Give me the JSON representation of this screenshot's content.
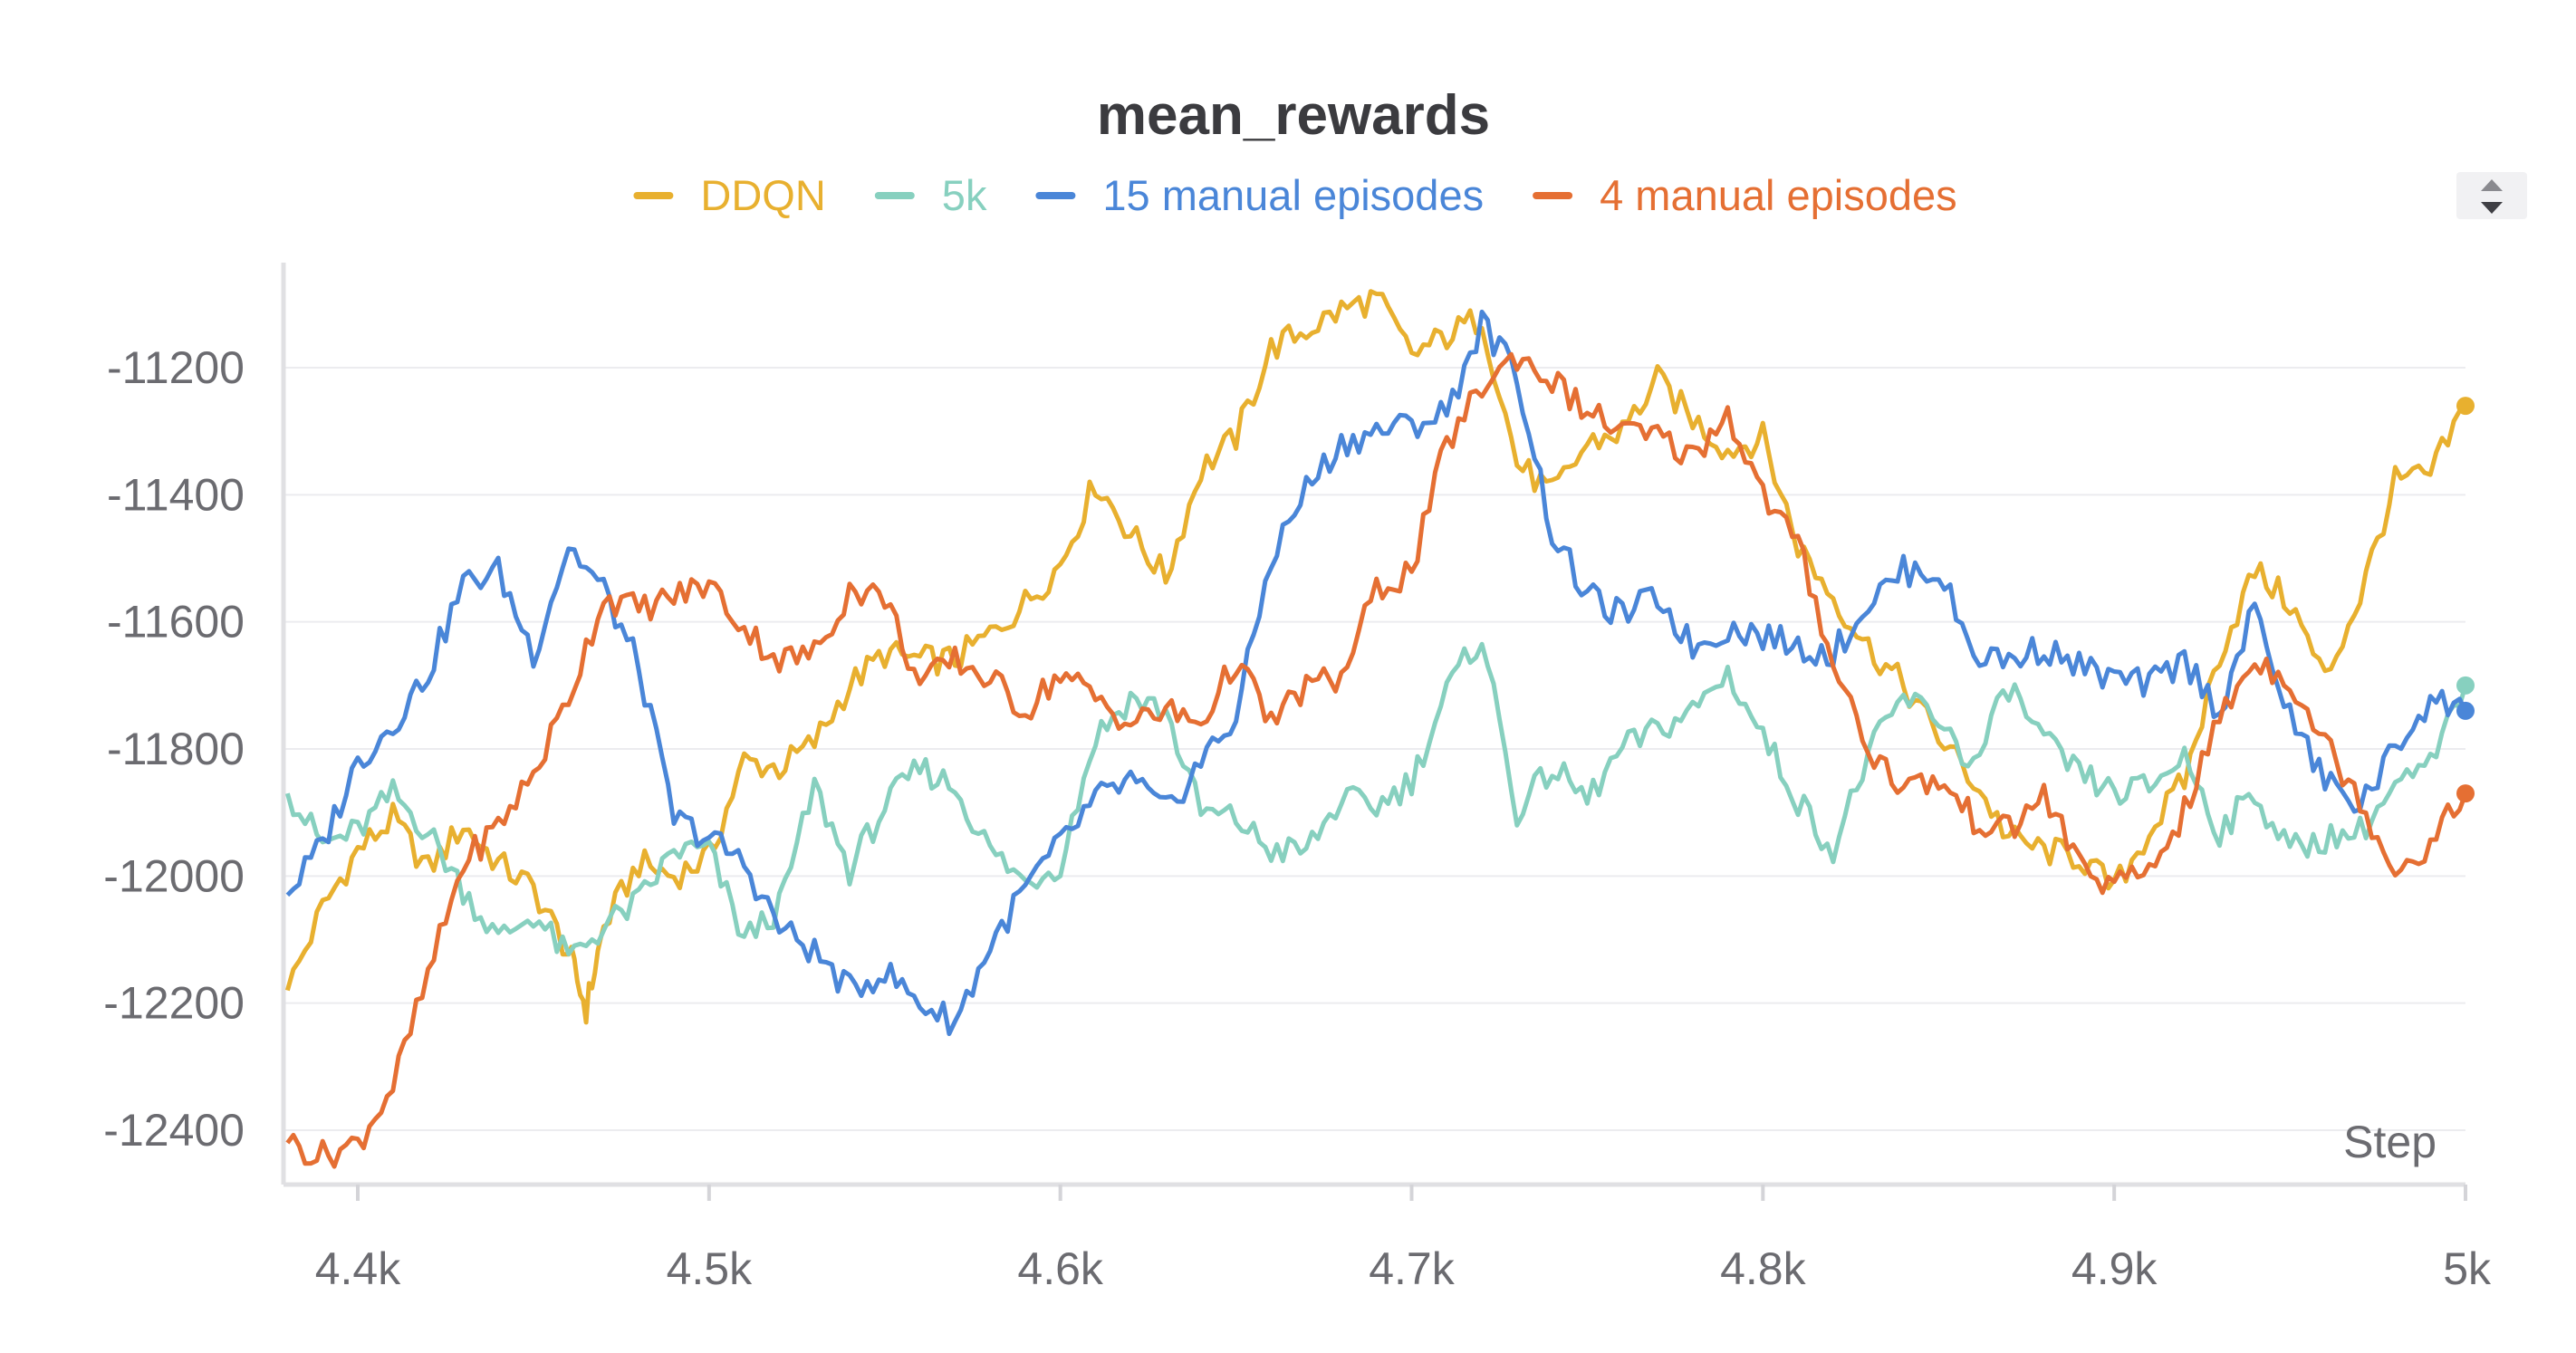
{
  "chart_data": {
    "type": "line",
    "title": "mean_rewards",
    "xlabel": "Step",
    "ylabel": "",
    "xlim": [
      4380,
      5000
    ],
    "ylim": [
      -12480,
      -11040
    ],
    "x_ticks": [
      4400,
      4500,
      4600,
      4700,
      4800,
      4900,
      5000
    ],
    "x_tick_labels": [
      "4.4k",
      "4.5k",
      "4.6k",
      "4.7k",
      "4.8k",
      "4.9k",
      "5k"
    ],
    "y_ticks": [
      -11200,
      -11400,
      -11600,
      -11800,
      -12000,
      -12200,
      -12400
    ],
    "y_tick_labels": [
      "-11200",
      "-11400",
      "-11600",
      "-11800",
      "-12000",
      "-12200",
      "-12400"
    ],
    "grid": true,
    "legend_position": "top-center",
    "series": [
      {
        "name": "DDQN",
        "color": "#e8b02f",
        "x": [
          4380,
          4390,
          4400,
          4410,
          4420,
          4430,
          4440,
          4450,
          4460,
          4465,
          4470,
          4480,
          4490,
          4500,
          4510,
          4520,
          4530,
          4540,
          4550,
          4560,
          4570,
          4580,
          4590,
          4600,
          4610,
          4620,
          4630,
          4640,
          4650,
          4660,
          4670,
          4680,
          4690,
          4700,
          4710,
          4720,
          4730,
          4740,
          4750,
          4760,
          4770,
          4780,
          4790,
          4800,
          4810,
          4820,
          4830,
          4840,
          4850,
          4860,
          4870,
          4880,
          4890,
          4900,
          4910,
          4920,
          4930,
          4940,
          4950,
          4960,
          4970,
          4980,
          4990,
          5000
        ],
        "values": [
          -12180,
          -12050,
          -11960,
          -11910,
          -11990,
          -11920,
          -11980,
          -12020,
          -12120,
          -12210,
          -12080,
          -11980,
          -12000,
          -11970,
          -11820,
          -11830,
          -11790,
          -11700,
          -11650,
          -11660,
          -11660,
          -11620,
          -11570,
          -11510,
          -11380,
          -11460,
          -11530,
          -11360,
          -11310,
          -11170,
          -11140,
          -11110,
          -11090,
          -11180,
          -11150,
          -11120,
          -11350,
          -11400,
          -11320,
          -11300,
          -11220,
          -11280,
          -11330,
          -11310,
          -11480,
          -11560,
          -11640,
          -11700,
          -11780,
          -11850,
          -11940,
          -11960,
          -11970,
          -12020,
          -11930,
          -11850,
          -11650,
          -11520,
          -11570,
          -11690,
          -11560,
          -11380,
          -11370,
          -11260
        ]
      },
      {
        "name": "5k",
        "color": "#87d0bf",
        "x": [
          4380,
          4390,
          4400,
          4410,
          4420,
          4430,
          4440,
          4450,
          4460,
          4470,
          4480,
          4490,
          4500,
          4510,
          4520,
          4530,
          4540,
          4550,
          4560,
          4570,
          4580,
          4590,
          4600,
          4610,
          4620,
          4630,
          4640,
          4650,
          4660,
          4670,
          4680,
          4690,
          4700,
          4710,
          4720,
          4730,
          4740,
          4750,
          4760,
          4770,
          4780,
          4790,
          4800,
          4810,
          4820,
          4830,
          4840,
          4850,
          4860,
          4870,
          4880,
          4890,
          4900,
          4910,
          4920,
          4930,
          4940,
          4950,
          4960,
          4970,
          4980,
          4990,
          5000
        ],
        "values": [
          -11870,
          -11950,
          -11930,
          -11870,
          -11930,
          -12020,
          -12100,
          -12060,
          -12130,
          -12080,
          -12040,
          -11960,
          -11960,
          -12100,
          -12050,
          -11860,
          -11990,
          -11890,
          -11830,
          -11860,
          -11960,
          -12010,
          -11980,
          -11780,
          -11720,
          -11740,
          -11900,
          -11910,
          -11960,
          -11960,
          -11880,
          -11890,
          -11850,
          -11710,
          -11620,
          -11900,
          -11830,
          -11880,
          -11800,
          -11770,
          -11740,
          -11680,
          -11780,
          -11880,
          -11960,
          -11810,
          -11720,
          -11750,
          -11830,
          -11700,
          -11790,
          -11840,
          -11870,
          -11860,
          -11810,
          -11930,
          -11870,
          -11960,
          -11940,
          -11930,
          -11860,
          -11830,
          -11700
        ]
      },
      {
        "name": "15 manual episodes",
        "color": "#4a86d8",
        "x": [
          4380,
          4390,
          4400,
          4410,
          4420,
          4430,
          4440,
          4450,
          4460,
          4470,
          4480,
          4490,
          4500,
          4510,
          4520,
          4530,
          4540,
          4550,
          4560,
          4570,
          4580,
          4590,
          4600,
          4610,
          4620,
          4630,
          4640,
          4650,
          4660,
          4670,
          4680,
          4690,
          4700,
          4710,
          4720,
          4730,
          4740,
          4750,
          4760,
          4770,
          4780,
          4790,
          4800,
          4810,
          4820,
          4830,
          4840,
          4850,
          4860,
          4870,
          4880,
          4890,
          4900,
          4910,
          4920,
          4930,
          4940,
          4950,
          4960,
          4970,
          4980,
          4990,
          5000
        ],
        "values": [
          -12030,
          -11950,
          -11820,
          -11760,
          -11680,
          -11540,
          -11520,
          -11650,
          -11480,
          -11550,
          -11670,
          -11910,
          -11940,
          -11980,
          -12080,
          -12120,
          -12180,
          -12150,
          -12200,
          -12230,
          -12110,
          -12020,
          -11950,
          -11880,
          -11850,
          -11900,
          -11820,
          -11750,
          -11500,
          -11390,
          -11320,
          -11300,
          -11290,
          -11270,
          -11130,
          -11210,
          -11460,
          -11560,
          -11590,
          -11560,
          -11640,
          -11610,
          -11620,
          -11640,
          -11650,
          -11570,
          -11520,
          -11520,
          -11650,
          -11660,
          -11640,
          -11670,
          -11690,
          -11700,
          -11660,
          -11740,
          -11580,
          -11750,
          -11850,
          -11890,
          -11800,
          -11720,
          -11740
        ]
      },
      {
        "name": "4 manual episodes",
        "color": "#e56f33",
        "x": [
          4380,
          4390,
          4400,
          4410,
          4420,
          4430,
          4440,
          4450,
          4460,
          4470,
          4480,
          4490,
          4500,
          4510,
          4520,
          4530,
          4540,
          4550,
          4560,
          4570,
          4580,
          4590,
          4600,
          4610,
          4620,
          4630,
          4640,
          4650,
          4660,
          4670,
          4680,
          4690,
          4700,
          4710,
          4720,
          4730,
          4740,
          4750,
          4760,
          4770,
          4780,
          4790,
          4800,
          4810,
          4820,
          4830,
          4840,
          4850,
          4860,
          4870,
          4880,
          4890,
          4900,
          4910,
          4920,
          4930,
          4940,
          4950,
          4960,
          4970,
          4980,
          4990,
          5000
        ],
        "values": [
          -12420,
          -12440,
          -12420,
          -12330,
          -12160,
          -11980,
          -11920,
          -11840,
          -11720,
          -11560,
          -11580,
          -11560,
          -11540,
          -11610,
          -11660,
          -11650,
          -11550,
          -11560,
          -11700,
          -11660,
          -11690,
          -11740,
          -11680,
          -11720,
          -11760,
          -11740,
          -11760,
          -11660,
          -11760,
          -11700,
          -11690,
          -11550,
          -11520,
          -11320,
          -11230,
          -11180,
          -11220,
          -11270,
          -11300,
          -11310,
          -11340,
          -11270,
          -11400,
          -11480,
          -11660,
          -11800,
          -11860,
          -11850,
          -11910,
          -11930,
          -11870,
          -11980,
          -12020,
          -11990,
          -11900,
          -11750,
          -11660,
          -11690,
          -11790,
          -11880,
          -11990,
          -11950,
          -11870
        ]
      }
    ]
  }
}
